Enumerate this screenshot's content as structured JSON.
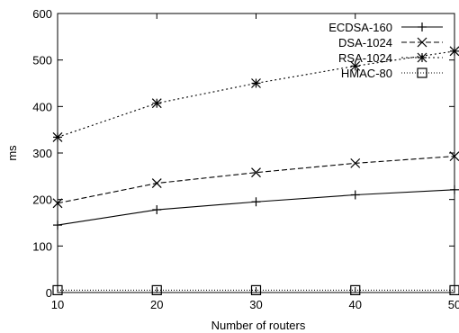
{
  "chart_data": {
    "type": "line",
    "title": "",
    "xlabel": "Number of routers",
    "ylabel": "ms",
    "x": [
      10,
      20,
      30,
      40,
      50
    ],
    "xlim": [
      10,
      50
    ],
    "ylim": [
      0,
      600
    ],
    "xticks": [
      "10",
      "20",
      "30",
      "40",
      "50"
    ],
    "yticks": [
      "0",
      "100",
      "200",
      "300",
      "400",
      "500",
      "600"
    ],
    "grid": false,
    "legend_position": "top-right",
    "series": [
      {
        "name": "ECDSA-160",
        "marker": "plus",
        "dash": "solid",
        "values": [
          145,
          178,
          195,
          210,
          221
        ]
      },
      {
        "name": "DSA-1024",
        "marker": "x",
        "dash": "dashed",
        "values": [
          192,
          235,
          258,
          278,
          293
        ]
      },
      {
        "name": "RSA-1024",
        "marker": "star",
        "dash": "dotted",
        "values": [
          334,
          407,
          450,
          487,
          519
        ]
      },
      {
        "name": "HMAC-80",
        "marker": "square",
        "dash": "fine-dotted",
        "values": [
          5,
          5,
          5,
          5,
          5
        ]
      }
    ]
  }
}
